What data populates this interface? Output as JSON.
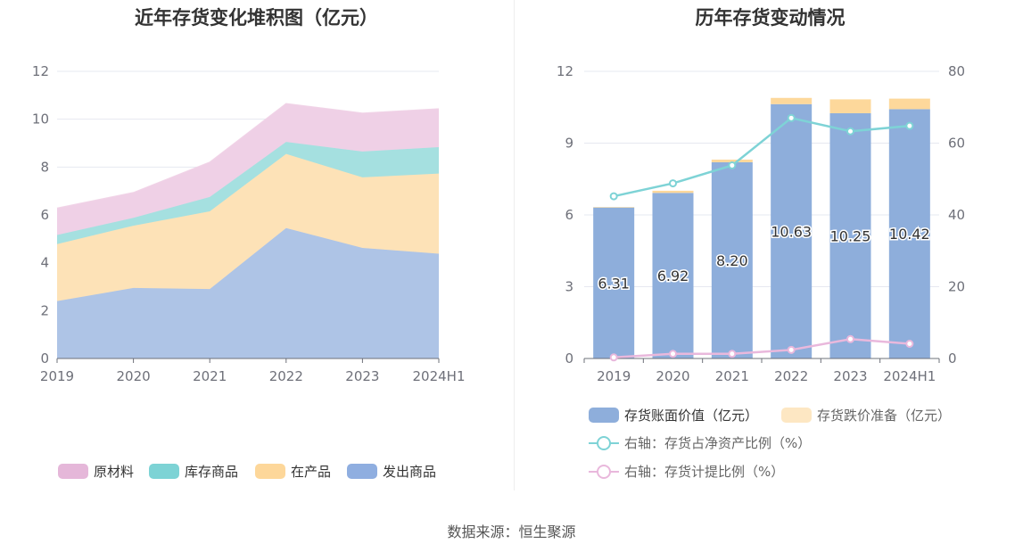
{
  "source_text": "数据来源：恒生聚源",
  "chart_data": [
    {
      "type": "area",
      "stacked": true,
      "title": "近年存货变化堆积图（亿元）",
      "categories": [
        "2019",
        "2020",
        "2021",
        "2022",
        "2023",
        "2024H1"
      ],
      "y_ticks": [
        "0",
        "2",
        "4",
        "6",
        "8",
        "10",
        "12"
      ],
      "ylim": [
        0,
        12
      ],
      "grid": true,
      "legend_position": "bottom",
      "series": [
        {
          "name": "发出商品",
          "color": "#aec4e6",
          "legend_color": "#8faee0",
          "values": [
            2.4,
            2.95,
            2.9,
            5.45,
            4.62,
            4.38
          ]
        },
        {
          "name": "在产品",
          "color": "#fde2b7",
          "legend_color": "#fdd79a",
          "values": [
            2.38,
            2.6,
            3.25,
            3.1,
            2.95,
            3.35
          ]
        },
        {
          "name": "库存商品",
          "color": "#a5e0e0",
          "legend_color": "#7dd3d5",
          "values": [
            0.38,
            0.33,
            0.6,
            0.5,
            1.08,
            1.1
          ]
        },
        {
          "name": "原材料",
          "color": "#efd0e6",
          "legend_color": "#e5b7d9",
          "values": [
            1.12,
            1.05,
            1.45,
            1.6,
            1.6,
            1.6
          ]
        }
      ]
    },
    {
      "type": "bar",
      "stacked": true,
      "title": "历年存货变动情况",
      "categories": [
        "2019",
        "2020",
        "2021",
        "2022",
        "2023",
        "2024H1"
      ],
      "y_ticks_left": [
        "0",
        "3",
        "6",
        "9",
        "12"
      ],
      "ylim_left": [
        0,
        12
      ],
      "y_ticks_right": [
        "0",
        "20",
        "40",
        "60",
        "80"
      ],
      "ylim_right": [
        0,
        80
      ],
      "grid": true,
      "legend_position": "bottom",
      "bars": [
        {
          "name": "存货账面价值（亿元）",
          "color": "#8eaedb",
          "values": [
            6.31,
            6.92,
            8.2,
            10.63,
            10.25,
            10.42
          ],
          "labels": [
            "6.31",
            "6.92",
            "8.20",
            "10.63",
            "10.25",
            "10.42"
          ]
        },
        {
          "name": "存货跌价准备（亿元）",
          "color": "#fdd89b",
          "values": [
            0.02,
            0.09,
            0.11,
            0.26,
            0.58,
            0.44
          ]
        }
      ],
      "lines": [
        {
          "name": "右轴：存货占净资产比例（%）",
          "color": "#7ed3d6",
          "axis": "right",
          "values": [
            45.2,
            48.8,
            53.8,
            67.0,
            63.3,
            64.8
          ]
        },
        {
          "name": "右轴：存货计提比例（%）",
          "color": "#e9b8dc",
          "axis": "right",
          "values": [
            0.3,
            1.3,
            1.3,
            2.4,
            5.4,
            4.1
          ]
        }
      ]
    }
  ]
}
